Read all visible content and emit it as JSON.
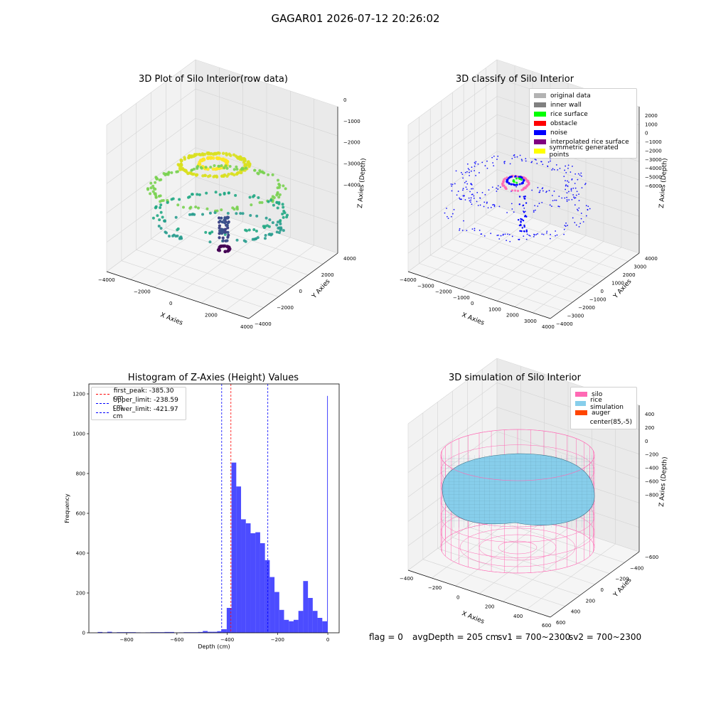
{
  "figure": {
    "suptitle": "GAGAR01 2026-07-12 20:26:02",
    "status_flag": "flag = 0",
    "status_avg": "avgDepth = 205 cm",
    "status_sv1": "sv1 = 700~2300",
    "status_sv2": "sv2 = 700~2300"
  },
  "panels": {
    "raw": {
      "title": "3D Plot of Silo Interior(row data)",
      "xlabel": "X Axies",
      "ylabel": "Y Axies",
      "zlabel": "Z Axies (Depth)",
      "xticks": [
        "−4000",
        "−2000",
        "0",
        "2000",
        "4000"
      ],
      "yticks": [
        "−4000",
        "−2000",
        "0",
        "2000",
        "4000"
      ],
      "zticks": [
        "0",
        "−1000",
        "−2000",
        "−3000",
        "−4000"
      ]
    },
    "classify": {
      "title": "3D classify of Silo Interior",
      "xlabel": "X Axies",
      "ylabel": "Y Axies",
      "zlabel": "Z Axies (Depth)",
      "xticks": [
        "−4000",
        "−3000",
        "−2000",
        "−1000",
        "0",
        "1000",
        "2000",
        "3000",
        "4000"
      ],
      "yticks": [
        "−4000",
        "−3000",
        "−2000",
        "−1000",
        "0",
        "1000",
        "2000",
        "3000",
        "4000"
      ],
      "zticks": [
        "2000",
        "1000",
        "0",
        "−1000",
        "−2000",
        "−3000",
        "−4000",
        "−5000",
        "−6000"
      ],
      "legend": [
        {
          "label": "original data",
          "color": "#b3b3b3"
        },
        {
          "label": "inner wall",
          "color": "#808080"
        },
        {
          "label": "rice surface",
          "color": "#00ff00"
        },
        {
          "label": "obstacle",
          "color": "#ff0000"
        },
        {
          "label": "noise",
          "color": "#0000ff"
        },
        {
          "label": "interpolated rice surface",
          "color": "#800080"
        },
        {
          "label": "symmetric generated points",
          "color": "#ffff00"
        }
      ]
    },
    "simulation": {
      "title": "3D simulation of Silo Interior",
      "xlabel": "X Axies",
      "ylabel": "Y Axies",
      "zlabel": "Z Axies (Depth)",
      "xticks": [
        "−400",
        "−200",
        "0",
        "200",
        "400",
        "600"
      ],
      "yticks": [
        "600",
        "400",
        "200",
        "0",
        "−200",
        "−400",
        "−600"
      ],
      "zticks": [
        "400",
        "200",
        "0",
        "−200",
        "−400",
        "−600",
        "−800"
      ],
      "legend": [
        {
          "label": "silo",
          "color": "#ff69b4"
        },
        {
          "label": "rice simulation",
          "color": "#87ceeb"
        },
        {
          "label": "auger",
          "color": "#ff4500"
        },
        {
          "label": "center(85,-5)",
          "color": "#ffffff"
        }
      ]
    }
  },
  "chart_data": [
    {
      "type": "bar",
      "title": "Histogram of Z-Axies (Height) Values",
      "xlabel": "Depth (cm)",
      "ylabel": "Frequency",
      "xlim": [
        -950,
        45
      ],
      "ylim": [
        0,
        1250
      ],
      "xticks": [
        -800,
        -600,
        -400,
        -200,
        0
      ],
      "yticks": [
        0,
        200,
        400,
        600,
        800,
        1000,
        1200
      ],
      "bar_color": "#0000ff",
      "bins": [
        [
          -915,
          -896,
          4
        ],
        [
          -896,
          -877,
          2
        ],
        [
          -877,
          -858,
          5
        ],
        [
          -858,
          -839,
          2
        ],
        [
          -839,
          -820,
          3
        ],
        [
          -820,
          -801,
          3
        ],
        [
          -801,
          -782,
          3
        ],
        [
          -782,
          -763,
          3
        ],
        [
          -763,
          -744,
          2
        ],
        [
          -744,
          -725,
          1
        ],
        [
          -725,
          -706,
          2
        ],
        [
          -706,
          -687,
          3
        ],
        [
          -687,
          -668,
          3
        ],
        [
          -668,
          -649,
          3
        ],
        [
          -649,
          -630,
          4
        ],
        [
          -630,
          -611,
          4
        ],
        [
          -611,
          -592,
          1
        ],
        [
          -592,
          -573,
          2
        ],
        [
          -573,
          -554,
          3
        ],
        [
          -554,
          -535,
          3
        ],
        [
          -535,
          -516,
          3
        ],
        [
          -516,
          -497,
          4
        ],
        [
          -497,
          -478,
          9
        ],
        [
          -478,
          -459,
          5
        ],
        [
          -459,
          -440,
          5
        ],
        [
          -440,
          -421,
          8
        ],
        [
          -421,
          -402,
          18
        ],
        [
          -402,
          -383,
          125
        ],
        [
          -383,
          -364,
          855
        ],
        [
          -364,
          -345,
          735
        ],
        [
          -345,
          -326,
          570
        ],
        [
          -326,
          -307,
          550
        ],
        [
          -307,
          -288,
          500
        ],
        [
          -288,
          -269,
          505
        ],
        [
          -269,
          -250,
          450
        ],
        [
          -250,
          -231,
          365
        ],
        [
          -231,
          -212,
          280
        ],
        [
          -212,
          -193,
          205
        ],
        [
          -193,
          -174,
          115
        ],
        [
          -174,
          -155,
          65
        ],
        [
          -155,
          -136,
          58
        ],
        [
          -136,
          -117,
          65
        ],
        [
          -117,
          -98,
          110
        ],
        [
          -98,
          -79,
          260
        ],
        [
          -79,
          -60,
          175
        ],
        [
          -60,
          -41,
          110
        ],
        [
          -41,
          -22,
          75
        ],
        [
          -22,
          -3,
          58
        ],
        [
          -3,
          0,
          1190
        ]
      ],
      "lines": [
        {
          "label": "first_peak: -385.30 cm",
          "x": -385.3,
          "color": "#ff0000"
        },
        {
          "label": "Upper_limit: -238.59 cm",
          "x": -238.59,
          "color": "#0000ff"
        },
        {
          "label": "Lower_limit: -421.97 cm",
          "x": -421.97,
          "color": "#0000ff"
        }
      ]
    }
  ]
}
